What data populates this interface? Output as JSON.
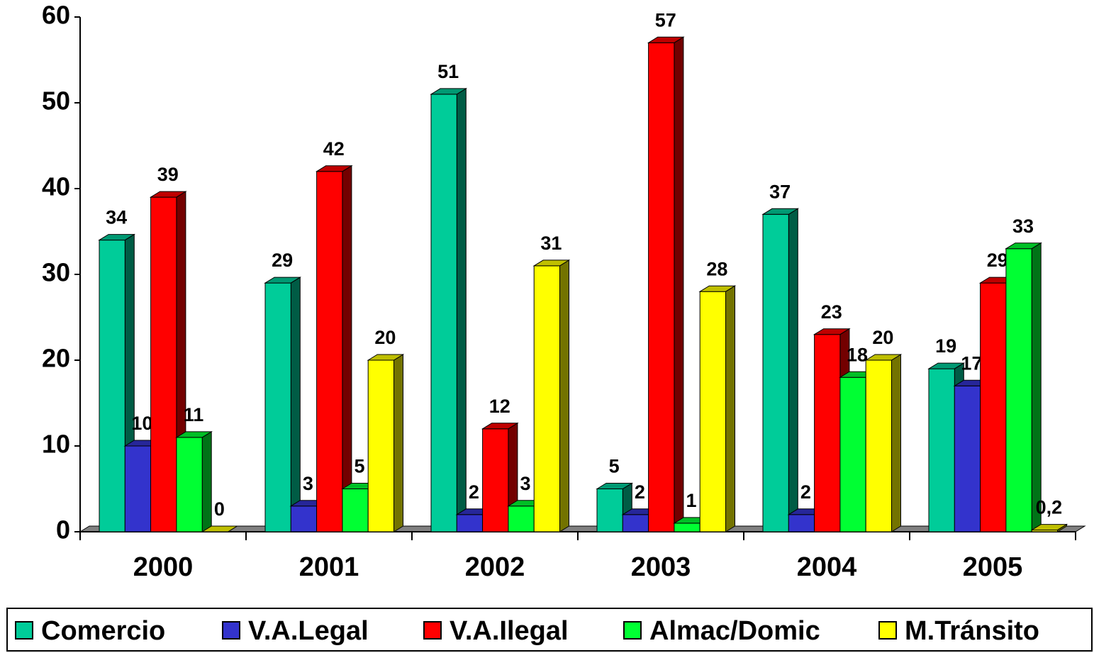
{
  "chart_data": {
    "type": "bar3d",
    "categories": [
      "2000",
      "2001",
      "2002",
      "2003",
      "2004",
      "2005"
    ],
    "series": [
      {
        "name": "Comercio",
        "color": "#00cc99",
        "values": [
          34,
          29,
          51,
          5,
          37,
          19
        ]
      },
      {
        "name": "V.A.Legal",
        "color": "#3333cc",
        "values": [
          10,
          3,
          2,
          2,
          2,
          17
        ]
      },
      {
        "name": "V.A.Ilegal",
        "color": "#ff0000",
        "values": [
          39,
          42,
          12,
          57,
          23,
          29
        ]
      },
      {
        "name": "Almac/Domic",
        "color": "#00ff33",
        "values": [
          11,
          5,
          3,
          1,
          18,
          33
        ]
      },
      {
        "name": "M.Tránsito",
        "color": "#ffff00",
        "values": [
          0,
          20,
          31,
          28,
          20,
          0.2
        ],
        "value_labels": [
          "0",
          "20",
          "31",
          "28",
          "20",
          "0,2"
        ]
      }
    ],
    "ylim": [
      0,
      60
    ],
    "yticks": [
      0,
      10,
      20,
      30,
      40,
      50,
      60
    ],
    "legend": "bottom"
  }
}
